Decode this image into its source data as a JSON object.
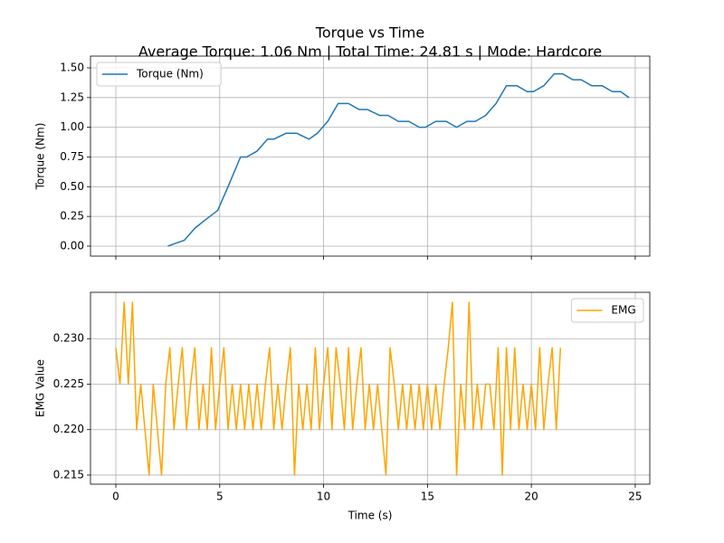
{
  "chart_data": [
    {
      "type": "line",
      "title": "Torque vs Time",
      "subtitle": "Average Torque: 1.06 Nm | Total Time: 24.81 s | Mode: Hardcore",
      "ylabel": "Torque (Nm)",
      "grid": true,
      "legend": "upper left",
      "xlim": [
        -1.22,
        25.7
      ],
      "xticks": [
        0,
        5,
        10,
        15,
        20,
        25
      ],
      "ylim": [
        -0.084,
        1.599
      ],
      "yticks": [
        {
          "value": 0,
          "label": "0.00"
        },
        {
          "value": 0.25,
          "label": "0.25"
        },
        {
          "value": 0.5,
          "label": "0.50"
        },
        {
          "value": 0.75,
          "label": "0.75"
        },
        {
          "value": 1,
          "label": "1.00"
        },
        {
          "value": 1.25,
          "label": "1.25"
        },
        {
          "value": 1.5,
          "label": "1.50"
        }
      ],
      "x": [
        2.5,
        3.3,
        3.8,
        4.3,
        4.9,
        5.4,
        6.0,
        6.3,
        6.8,
        7.3,
        7.6,
        8.2,
        8.7,
        9.3,
        9.7,
        10.2,
        10.7,
        11.2,
        11.7,
        12.1,
        12.7,
        13.1,
        13.6,
        14.1,
        14.6,
        14.9,
        15.4,
        15.9,
        16.4,
        16.9,
        17.3,
        17.8,
        18.3,
        18.8,
        19.3,
        19.8,
        20.1,
        20.6,
        21.1,
        21.5,
        22.0,
        22.4,
        22.9,
        23.4,
        23.9,
        24.3,
        24.7
      ],
      "series": [
        {
          "name": "Torque (Nm)",
          "color": "#1f77b4",
          "values": [
            0,
            0.05,
            0.15,
            0.22,
            0.3,
            0.5,
            0.75,
            0.75,
            0.8,
            0.9,
            0.9,
            0.95,
            0.95,
            0.9,
            0.95,
            1.05,
            1.2,
            1.2,
            1.15,
            1.15,
            1.1,
            1.1,
            1.05,
            1.05,
            1.0,
            1.0,
            1.05,
            1.05,
            1.0,
            1.05,
            1.05,
            1.1,
            1.2,
            1.35,
            1.35,
            1.3,
            1.3,
            1.35,
            1.45,
            1.45,
            1.4,
            1.4,
            1.35,
            1.35,
            1.3,
            1.3,
            1.25
          ]
        }
      ]
    },
    {
      "type": "line",
      "xlabel": "Time (s)",
      "ylabel": "EMG Value",
      "grid": true,
      "legend": "upper right",
      "xlim": [
        -1.22,
        25.7
      ],
      "xticks": [
        0,
        5,
        10,
        15,
        20,
        25
      ],
      "ylim": [
        0.214,
        0.2351
      ],
      "yticks": [
        0.215,
        {
          "value": 0.22,
          "label": "0.220"
        },
        0.225,
        {
          "value": 0.23,
          "label": "0.230"
        }
      ],
      "x": [
        0.0,
        0.2,
        0.4,
        0.6,
        0.8,
        1.0,
        1.2,
        1.4,
        1.6,
        1.8,
        2.0,
        2.2,
        2.4,
        2.6,
        2.8,
        3.0,
        3.2,
        3.4,
        3.6,
        3.8,
        4.0,
        4.2,
        4.4,
        4.6,
        4.8,
        5.0,
        5.2,
        5.4,
        5.6,
        5.8,
        6.0,
        6.2,
        6.4,
        6.6,
        6.8,
        7.0,
        7.2,
        7.4,
        7.6,
        7.8,
        8.0,
        8.2,
        8.4,
        8.6,
        8.8,
        9.0,
        9.2,
        9.4,
        9.6,
        9.8,
        10.0,
        10.2,
        10.4,
        10.6,
        10.8,
        11.0,
        11.2,
        11.4,
        11.6,
        11.8,
        12.0,
        12.2,
        12.4,
        12.6,
        12.8,
        13.0,
        13.2,
        13.4,
        13.6,
        13.8,
        14.0,
        14.2,
        14.4,
        14.6,
        14.8,
        15.0,
        15.2,
        15.4,
        15.6,
        15.8,
        16.0,
        16.2,
        16.4,
        16.6,
        16.8,
        17.0,
        17.2,
        17.4,
        17.6,
        17.8,
        18.0,
        18.2,
        18.4,
        18.6,
        18.8,
        19.0,
        19.2,
        19.4,
        19.6,
        19.8,
        20.0,
        20.2,
        20.4,
        20.6,
        20.8,
        21.0,
        21.2,
        21.4
      ],
      "series": [
        {
          "name": "EMG",
          "color": "#ffa500",
          "values": [
            0.229,
            0.225,
            0.234,
            0.225,
            0.234,
            0.22,
            0.225,
            0.22,
            0.215,
            0.225,
            0.22,
            0.215,
            0.225,
            0.229,
            0.22,
            0.225,
            0.229,
            0.22,
            0.225,
            0.229,
            0.22,
            0.225,
            0.22,
            0.229,
            0.22,
            0.225,
            0.229,
            0.22,
            0.225,
            0.22,
            0.225,
            0.22,
            0.225,
            0.22,
            0.225,
            0.22,
            0.225,
            0.229,
            0.22,
            0.225,
            0.22,
            0.225,
            0.229,
            0.215,
            0.225,
            0.22,
            0.225,
            0.22,
            0.229,
            0.22,
            0.225,
            0.229,
            0.22,
            0.229,
            0.225,
            0.22,
            0.229,
            0.22,
            0.225,
            0.229,
            0.22,
            0.225,
            0.22,
            0.225,
            0.22,
            0.215,
            0.229,
            0.225,
            0.22,
            0.225,
            0.22,
            0.225,
            0.22,
            0.225,
            0.22,
            0.225,
            0.22,
            0.225,
            0.22,
            0.225,
            0.229,
            0.234,
            0.215,
            0.225,
            0.22,
            0.234,
            0.22,
            0.225,
            0.22,
            0.225,
            0.225,
            0.22,
            0.229,
            0.215,
            0.229,
            0.22,
            0.229,
            0.22,
            0.225,
            0.22,
            0.225,
            0.22,
            0.229,
            0.22,
            0.225,
            0.229,
            0.22,
            0.229
          ]
        }
      ]
    }
  ]
}
